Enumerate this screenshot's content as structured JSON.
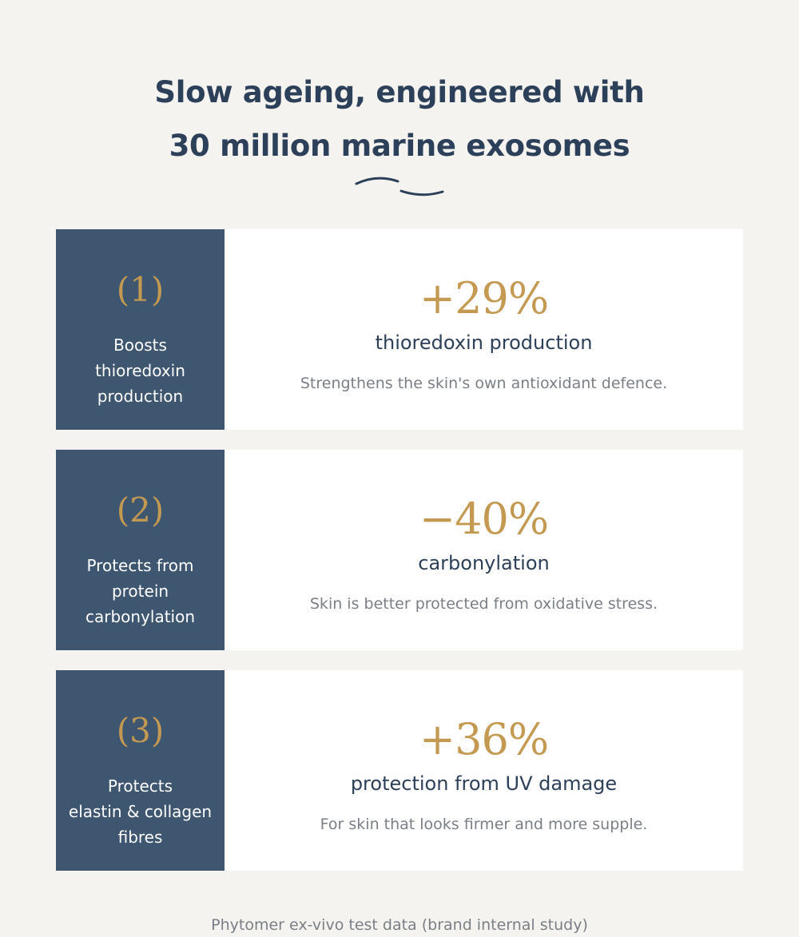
{
  "headline": {
    "line1": "Slow ageing, engineered with",
    "line2": "30 million marine exosomes"
  },
  "colors": {
    "background": "#f5f3ef",
    "navy_panel": "#3f5670",
    "heading_text": "#2d4059",
    "gold_accent": "#c49a52",
    "muted_text": "#7a7f86"
  },
  "benefits": [
    {
      "number": "(1)",
      "label_lines": [
        "Boosts",
        "thioredoxin",
        "production"
      ],
      "stat": "+29%",
      "metric": "thioredoxin production",
      "description": "Strengthens the skin's own antioxidant defence."
    },
    {
      "number": "(2)",
      "label_lines": [
        "Protects from",
        "protein",
        "carbonylation"
      ],
      "stat": "−40%",
      "metric": "carbonylation",
      "description": "Skin is better protected from oxidative stress."
    },
    {
      "number": "(3)",
      "label_lines": [
        "Protects",
        "elastin & collagen",
        "fibres"
      ],
      "stat": "+36%",
      "metric": "protection from UV damage",
      "description": "For skin that looks firmer and more supple."
    }
  ],
  "footnote": "Phytomer ex-vivo test data (brand internal study)"
}
